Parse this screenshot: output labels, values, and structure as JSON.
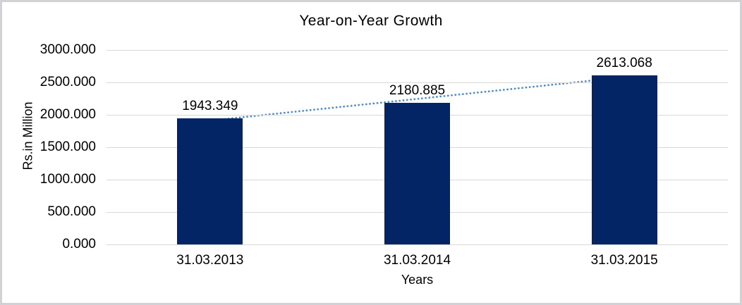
{
  "window": {
    "background": "#ffffff",
    "border_color": "#d2d2d6"
  },
  "chart_data": {
    "type": "bar",
    "title": "Year-on-Year Growth",
    "xlabel": "Years",
    "ylabel": "Rs.in Million",
    "categories": [
      "31.03.2013",
      "31.03.2014",
      "31.03.2015"
    ],
    "values": [
      1943.349,
      2180.885,
      2613.068
    ],
    "data_labels": [
      "1943.349",
      "2180.885",
      "2613.068"
    ],
    "ylim": [
      0,
      3000
    ],
    "ytick_step": 500,
    "ytick_labels": [
      "0.000",
      "500.000",
      "1000.000",
      "1500.000",
      "2000.000",
      "2500.000",
      "3000.000"
    ],
    "grid": true,
    "legend": "none",
    "bar_color": "#032565",
    "gridline_color": "#d9d9d9",
    "text_color": "#000000",
    "trendline": {
      "type": "linear",
      "style": "dotted",
      "color": "#4e8cce",
      "endpoint_values": [
        1910.9,
        2580.6
      ]
    }
  }
}
